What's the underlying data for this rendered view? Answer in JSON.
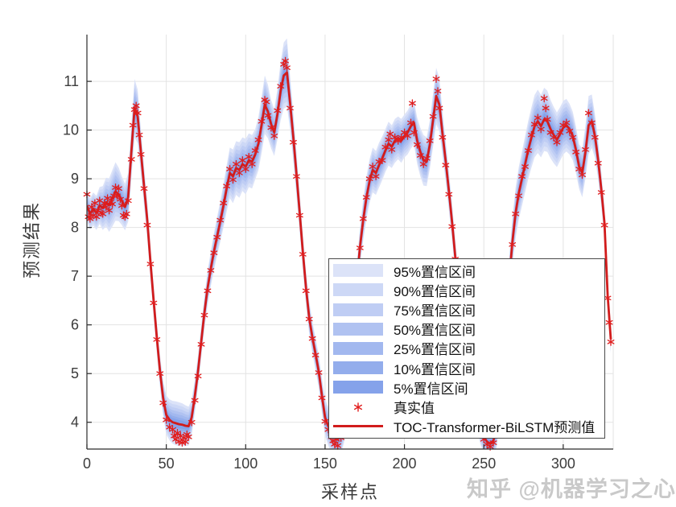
{
  "watermark": {
    "text": "知乎 @机器学习之心",
    "color": "#c9c9c9"
  },
  "chart_data": {
    "type": "line",
    "title": "",
    "xlabel": "采样点",
    "ylabel": "预测结果",
    "xlim": [
      0,
      331.5
    ],
    "ylim": [
      3.45,
      11.96
    ],
    "xticks": [
      0,
      50,
      100,
      150,
      200,
      250,
      300
    ],
    "yticks": [
      4,
      5,
      6,
      7,
      8,
      9,
      10,
      11
    ],
    "grid": true,
    "legend_position": "lower-right-inside",
    "colors": {
      "prediction_line": "#d11c1c",
      "true_marker": "#e11e1e",
      "grid": "#e3e3e3",
      "axis": "#2b2b2b",
      "tick_label": "#3c3c3c"
    },
    "bands": {
      "labels": [
        "95%置信区间",
        "90%置信区间",
        "75%置信区间",
        "50%置信区间",
        "25%置信区间",
        "10%置信区间",
        "5%置信区间"
      ],
      "colors": [
        "#dce3f8",
        "#cdd8f6",
        "#bfcdf4",
        "#b0c2f1",
        "#a2b8ef",
        "#93adec",
        "#85a2ea"
      ],
      "fractions": [
        1.0,
        0.85,
        0.7,
        0.56,
        0.43,
        0.3,
        0.19
      ]
    },
    "legend_entries": [
      {
        "type": "band",
        "label": "95%置信区间",
        "color": "#dce3f8"
      },
      {
        "type": "band",
        "label": "90%置信区间",
        "color": "#cdd8f6"
      },
      {
        "type": "band",
        "label": "75%置信区间",
        "color": "#bfcdf4"
      },
      {
        "type": "band",
        "label": "50%置信区间",
        "color": "#b0c2f1"
      },
      {
        "type": "band",
        "label": "25%置信区间",
        "color": "#a2b8ef"
      },
      {
        "type": "band",
        "label": "10%置信区间",
        "color": "#93adec"
      },
      {
        "type": "band",
        "label": "5%置信区间",
        "color": "#85a2ea"
      },
      {
        "type": "marker",
        "label": "真实值",
        "color": "#e11e1e"
      },
      {
        "type": "line",
        "label": "TOC-Transformer-BiLSTM预测值",
        "color": "#d11c1c"
      }
    ],
    "series": [
      {
        "name": "TOC-Transformer-BiLSTM预测值",
        "kind": "line",
        "x": [
          0,
          2,
          4,
          6,
          8,
          10,
          12,
          14,
          16,
          18,
          20,
          22,
          24,
          26,
          28,
          30,
          32,
          34,
          36,
          38,
          40,
          42,
          44,
          46,
          48,
          50,
          52,
          54,
          56,
          58,
          60,
          62,
          64,
          66,
          68,
          70,
          72,
          74,
          76,
          78,
          80,
          82,
          84,
          86,
          88,
          90,
          92,
          94,
          96,
          98,
          100,
          102,
          104,
          106,
          108,
          110,
          112,
          114,
          116,
          118,
          120,
          122,
          124,
          126,
          128,
          130,
          132,
          134,
          136,
          138,
          140,
          142,
          144,
          146,
          148,
          150,
          152,
          154,
          156,
          158,
          160,
          162,
          164,
          166,
          168,
          170,
          172,
          174,
          176,
          178,
          180,
          182,
          184,
          186,
          188,
          190,
          192,
          194,
          196,
          198,
          200,
          202,
          204,
          206,
          208,
          210,
          212,
          214,
          216,
          218,
          220,
          222,
          224,
          226,
          228,
          230,
          232,
          234,
          236,
          238,
          240,
          242,
          244,
          246,
          248,
          250,
          252,
          254,
          256,
          258,
          260,
          262,
          264,
          266,
          268,
          270,
          272,
          274,
          276,
          278,
          280,
          282,
          284,
          286,
          288,
          290,
          292,
          294,
          296,
          298,
          300,
          302,
          304,
          306,
          308,
          310,
          312,
          314,
          316,
          318,
          320,
          322,
          324,
          326,
          328,
          330
        ],
        "y": [
          8.45,
          8.28,
          8.38,
          8.3,
          8.45,
          8.4,
          8.52,
          8.46,
          8.6,
          8.74,
          8.68,
          8.55,
          8.42,
          8.62,
          9.55,
          10.45,
          10.28,
          9.55,
          8.85,
          8.15,
          7.3,
          6.5,
          5.75,
          5.05,
          4.5,
          4.15,
          4.05,
          4.0,
          3.98,
          3.96,
          3.95,
          3.93,
          3.92,
          4.1,
          4.55,
          5.05,
          5.65,
          6.25,
          6.75,
          7.15,
          7.5,
          7.82,
          8.12,
          8.45,
          8.8,
          9.12,
          9.05,
          9.22,
          9.18,
          9.3,
          9.25,
          9.38,
          9.35,
          9.5,
          9.72,
          10.1,
          10.52,
          10.38,
          10.12,
          9.95,
          10.32,
          10.8,
          11.12,
          11.18,
          10.55,
          9.85,
          9.1,
          8.3,
          7.5,
          6.75,
          6.15,
          5.75,
          5.4,
          5.05,
          4.55,
          4.1,
          3.92,
          3.8,
          3.7,
          3.66,
          3.72,
          3.95,
          4.45,
          5.25,
          6.1,
          6.9,
          7.6,
          8.15,
          8.6,
          8.95,
          9.18,
          9.12,
          9.28,
          9.42,
          9.58,
          9.72,
          9.66,
          9.78,
          9.84,
          9.78,
          9.88,
          9.95,
          10.08,
          10.15,
          9.78,
          9.55,
          9.38,
          9.35,
          9.7,
          10.2,
          10.7,
          10.52,
          9.92,
          9.35,
          8.75,
          8.1,
          7.4,
          6.7,
          6.1,
          5.6,
          5.18,
          4.8,
          4.45,
          4.1,
          3.85,
          3.7,
          3.6,
          3.56,
          3.62,
          3.85,
          4.35,
          5.15,
          6.05,
          6.95,
          7.7,
          8.3,
          8.7,
          9.0,
          9.3,
          9.6,
          9.85,
          10.08,
          10.18,
          10.08,
          10.22,
          10.18,
          10.02,
          9.9,
          9.8,
          9.92,
          10.05,
          10.1,
          10.02,
          9.88,
          9.6,
          9.25,
          9.12,
          9.55,
          10.1,
          10.18,
          9.88,
          9.38,
          8.78,
          8.1,
          6.6,
          5.7
        ],
        "band_halfwidth": [
          0.32,
          0.32,
          0.34,
          0.35,
          0.38,
          0.45,
          0.5,
          0.55,
          0.58,
          0.6,
          0.55,
          0.5,
          0.48,
          0.5,
          0.55,
          0.6,
          0.55,
          0.45,
          0.4,
          0.38,
          0.35,
          0.33,
          0.32,
          0.33,
          0.36,
          0.4,
          0.42,
          0.44,
          0.45,
          0.45,
          0.44,
          0.42,
          0.4,
          0.36,
          0.34,
          0.33,
          0.33,
          0.34,
          0.35,
          0.36,
          0.38,
          0.4,
          0.42,
          0.45,
          0.48,
          0.52,
          0.55,
          0.55,
          0.57,
          0.55,
          0.57,
          0.55,
          0.55,
          0.52,
          0.55,
          0.58,
          0.6,
          0.55,
          0.5,
          0.48,
          0.52,
          0.6,
          0.68,
          0.7,
          0.55,
          0.5,
          0.45,
          0.4,
          0.37,
          0.35,
          0.34,
          0.33,
          0.33,
          0.34,
          0.36,
          0.38,
          0.4,
          0.42,
          0.42,
          0.4,
          0.38,
          0.36,
          0.35,
          0.35,
          0.36,
          0.38,
          0.4,
          0.42,
          0.44,
          0.45,
          0.46,
          0.45,
          0.46,
          0.45,
          0.44,
          0.45,
          0.44,
          0.45,
          0.44,
          0.45,
          0.44,
          0.45,
          0.46,
          0.45,
          0.48,
          0.5,
          0.52,
          0.5,
          0.5,
          0.55,
          0.58,
          0.55,
          0.45,
          0.42,
          0.4,
          0.38,
          0.36,
          0.35,
          0.34,
          0.33,
          0.32,
          0.32,
          0.31,
          0.31,
          0.32,
          0.33,
          0.34,
          0.35,
          0.36,
          0.38,
          0.4,
          0.42,
          0.44,
          0.46,
          0.5,
          0.52,
          0.54,
          0.56,
          0.58,
          0.6,
          0.62,
          0.64,
          0.65,
          0.64,
          0.65,
          0.63,
          0.6,
          0.58,
          0.56,
          0.55,
          0.55,
          0.54,
          0.52,
          0.5,
          0.48,
          0.46,
          0.5,
          0.55,
          0.6,
          0.55,
          0.45,
          0.4,
          0.36,
          0.32,
          0.3,
          0.28
        ]
      },
      {
        "name": "真实值",
        "kind": "scatter",
        "x": [
          0,
          1,
          2,
          3,
          4,
          5,
          6,
          7,
          8,
          9,
          10,
          11,
          12,
          13,
          14,
          15,
          16,
          17,
          18,
          19,
          20,
          21,
          22,
          23,
          24,
          25,
          26,
          28,
          29,
          30,
          31,
          32,
          33,
          34,
          36,
          38,
          40,
          42,
          44,
          46,
          48,
          50,
          52,
          54,
          55,
          56,
          57,
          58,
          59,
          60,
          61,
          62,
          63,
          64,
          66,
          68,
          70,
          72,
          74,
          76,
          78,
          80,
          82,
          84,
          86,
          88,
          90,
          92,
          94,
          96,
          98,
          100,
          102,
          104,
          106,
          108,
          110,
          112,
          113,
          114,
          116,
          118,
          120,
          122,
          124,
          125,
          126,
          128,
          130,
          132,
          134,
          136,
          138,
          140,
          142,
          144,
          146,
          148,
          150,
          152,
          154,
          155,
          156,
          157,
          158,
          160,
          162,
          164,
          166,
          168,
          170,
          172,
          174,
          176,
          178,
          180,
          182,
          184,
          186,
          188,
          190,
          191,
          192,
          194,
          196,
          198,
          200,
          202,
          204,
          205,
          206,
          208,
          210,
          212,
          214,
          216,
          218,
          220,
          221,
          222,
          224,
          226,
          228,
          230,
          232,
          234,
          236,
          238,
          240,
          242,
          244,
          246,
          248,
          250,
          252,
          254,
          256,
          258,
          260,
          262,
          264,
          266,
          268,
          270,
          272,
          274,
          276,
          278,
          280,
          282,
          284,
          286,
          288,
          289,
          290,
          292,
          294,
          296,
          298,
          300,
          302,
          304,
          306,
          308,
          310,
          312,
          314,
          316,
          318,
          320,
          322,
          324,
          326,
          328,
          329,
          330
        ],
        "y": [
          8.68,
          8.22,
          8.18,
          8.42,
          8.25,
          8.5,
          8.22,
          8.35,
          8.55,
          8.3,
          8.28,
          8.5,
          8.42,
          8.6,
          8.35,
          8.52,
          8.48,
          8.65,
          8.82,
          8.65,
          8.8,
          8.58,
          8.45,
          8.25,
          8.22,
          8.28,
          8.55,
          9.4,
          10.1,
          10.42,
          10.5,
          10.35,
          9.9,
          9.5,
          8.8,
          8.05,
          7.25,
          6.45,
          5.7,
          5.0,
          4.4,
          4.05,
          3.9,
          3.85,
          3.72,
          3.65,
          3.78,
          3.6,
          3.72,
          3.58,
          3.68,
          3.6,
          3.75,
          3.7,
          4.0,
          4.45,
          4.95,
          5.6,
          6.2,
          6.7,
          7.12,
          7.48,
          7.8,
          8.15,
          8.5,
          8.85,
          9.2,
          8.98,
          9.3,
          9.12,
          9.38,
          9.2,
          9.45,
          9.3,
          9.58,
          9.8,
          10.18,
          10.62,
          10.58,
          10.3,
          10.05,
          9.88,
          10.4,
          10.9,
          11.35,
          11.42,
          11.28,
          10.45,
          9.75,
          9.05,
          8.25,
          7.45,
          6.7,
          6.12,
          5.72,
          5.38,
          5.02,
          4.5,
          4.02,
          3.85,
          3.7,
          3.62,
          3.55,
          3.65,
          3.52,
          3.68,
          3.92,
          4.42,
          5.22,
          6.08,
          6.92,
          7.58,
          8.18,
          8.62,
          9.0,
          9.25,
          9.05,
          9.35,
          9.38,
          9.65,
          9.8,
          9.92,
          9.6,
          9.85,
          9.78,
          9.85,
          9.95,
          9.88,
          10.15,
          10.55,
          9.95,
          9.7,
          9.48,
          9.3,
          9.42,
          9.78,
          10.28,
          11.05,
          10.8,
          10.45,
          9.85,
          9.28,
          8.68,
          8.02,
          7.35,
          6.65,
          6.05,
          5.55,
          5.12,
          4.75,
          4.4,
          4.05,
          3.8,
          3.65,
          3.55,
          3.5,
          3.58,
          3.8,
          4.3,
          5.1,
          6.0,
          6.9,
          7.65,
          8.28,
          8.65,
          9.05,
          9.25,
          9.58,
          9.9,
          10.12,
          10.25,
          10.02,
          10.65,
          10.45,
          10.22,
          9.95,
          9.85,
          9.75,
          9.95,
          10.1,
          10.15,
          9.98,
          9.85,
          9.55,
          9.2,
          9.08,
          9.6,
          10.35,
          10.15,
          9.85,
          9.32,
          8.72,
          8.05,
          6.55,
          6.05,
          5.65
        ]
      }
    ]
  }
}
